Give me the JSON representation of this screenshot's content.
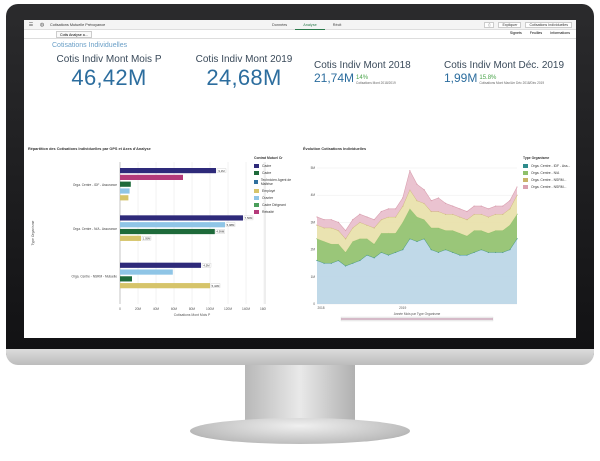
{
  "topbar": {
    "menu_icon": "menu-icon",
    "app_name": "Cotisations Mutuelle Prévoyance",
    "tabs": [
      {
        "label": "Données"
      },
      {
        "label": "Analyse"
      },
      {
        "label": "Récit"
      }
    ],
    "active_tab": "Analyse",
    "explain_label": "Expliquer",
    "sheet_name": "Cotisations Individuelles"
  },
  "secbar": {
    "sheet_tab": "Cotis Analyse a...",
    "bookmarks": "Signets",
    "sheets": "Feuilles",
    "details": "Informations"
  },
  "sheet_title": "Cotisations Individuelles",
  "kpis": [
    {
      "title": "Cotis Indiv Mont Mois P",
      "value": "46,42M"
    },
    {
      "title": "Cotis Indiv Mont 2019",
      "value": "24,68M"
    },
    {
      "title": "Cotis Indiv Mont 2018",
      "value": "21,74M",
      "pct": "14%",
      "cmp": "Cotisations Mont 2018/2019"
    },
    {
      "title": "Cotis Indiv Mont Déc. 2019",
      "value": "1,99M",
      "pct": "15.8%",
      "cmp": "Cotisations Mont Max/Arr Déc 2018/Déc 2019"
    }
  ],
  "bar_panel": {
    "title": "Répartition des Cotisations Individuelles par OPS et Axes d'Analyse",
    "legend_title": "Contrat Mutuel Cr",
    "legend": [
      {
        "label": "Cadre",
        "color": "#2e2a7a"
      },
      {
        "label": "Cadre",
        "color": "#1e6a3a"
      },
      {
        "label": "Technicien Agent de Maîtrise",
        "color": "#2f6f9e"
      },
      {
        "label": "Employé",
        "color": "#d6c46a"
      },
      {
        "label": "Ouvrier",
        "color": "#8fc5e6"
      },
      {
        "label": "Cadre Dirigeant",
        "color": "#4a9e5a"
      },
      {
        "label": "Retraité",
        "color": "#b43a7a"
      }
    ]
  },
  "chart_data": [
    {
      "type": "bar",
      "orientation": "horizontal",
      "xlabel": "Cotisations Mont Mois P",
      "ylabel": "Type Organisme",
      "categories": [
        "Orga. Centre - IDF - Assurance",
        "Orga. Centre - N/A - Assurance",
        "Orga. Centre - NSRM - Mutuelle"
      ],
      "xticks": [
        "0",
        "20M",
        "40M",
        "60M",
        "80M",
        "100M",
        "120M",
        "140M",
        "160M"
      ],
      "groups": [
        {
          "category": "Orga. Centre - IDF - Assurance",
          "bars": [
            {
              "value": 160,
              "label": "9,1M",
              "color": "#2e2a7a"
            },
            {
              "value": 105,
              "label": "",
              "color": "#b43a7a"
            },
            {
              "value": 18,
              "label": "",
              "color": "#1e6a3a"
            },
            {
              "value": 16,
              "label": "",
              "color": "#8fc5e6"
            },
            {
              "value": 14,
              "label": "",
              "color": "#d6c46a"
            }
          ]
        },
        {
          "category": "Orga. Centre - N/A - Assurance",
          "bars": [
            {
              "value": 205,
              "label": "7,56M",
              "color": "#2e2a7a"
            },
            {
              "value": 175,
              "label": "5,98M",
              "color": "#8fc5e6"
            },
            {
              "value": 158,
              "label": "4,99M",
              "color": "#1e6a3a"
            },
            {
              "value": 35,
              "label": "1,05M",
              "color": "#d6c46a"
            }
          ]
        },
        {
          "category": "Orga. Centre - NSRM - Mutuelle",
          "bars": [
            {
              "value": 135,
              "label": "4,5M",
              "color": "#2e2a7a"
            },
            {
              "value": 88,
              "label": "",
              "color": "#8fc5e6"
            },
            {
              "value": 20,
              "label": "",
              "color": "#1e6a3a"
            },
            {
              "value": 150,
              "label": "5,42M",
              "color": "#d6c46a"
            }
          ]
        }
      ]
    },
    {
      "type": "area",
      "title": "Évolution Cotisations Individuelles",
      "legend_title": "Type Organisme",
      "legend": [
        {
          "label": "Orga. Centre - IDF - Ass...",
          "color": "#2e8b8b"
        },
        {
          "label": "Orga. Centre - N/A",
          "color": "#8fc06a"
        },
        {
          "label": "Orga. Centre - NSRM...",
          "color": "#c9b36a"
        },
        {
          "label": "Orga. Centre - NSRM...",
          "color": "#d9a0b0"
        }
      ],
      "yticks": [
        "0",
        "1M",
        "2M",
        "3M",
        "4M",
        "5M"
      ],
      "xticks": [
        "2018",
        "2019"
      ],
      "scrollbar_label": "Année Mois par Type Organisme",
      "series": [
        {
          "values": [
            1.6,
            1.5,
            1.5,
            1.6,
            1.4,
            1.5,
            1.6,
            1.8,
            1.7,
            1.9,
            1.8,
            1.9,
            2.0,
            2.4,
            2.3,
            2.4,
            2.0,
            1.9,
            2.0,
            1.9,
            1.8,
            1.8,
            1.9,
            2.0,
            1.9,
            1.9,
            1.9,
            2.0,
            2.4
          ],
          "color": "#b9d5e6"
        },
        {
          "values": [
            0.8,
            0.8,
            0.7,
            0.6,
            0.5,
            0.8,
            0.8,
            0.6,
            0.5,
            0.7,
            0.8,
            0.7,
            1.0,
            1.1,
            0.9,
            0.7,
            0.8,
            0.9,
            0.7,
            0.8,
            0.8,
            0.7,
            0.8,
            0.7,
            0.7,
            0.8,
            0.8,
            0.9,
            0.9
          ],
          "color": "#8fc06a"
        },
        {
          "values": [
            0.5,
            0.5,
            0.6,
            0.5,
            0.5,
            0.5,
            0.6,
            0.5,
            0.6,
            0.5,
            0.6,
            0.6,
            0.6,
            0.7,
            0.6,
            0.6,
            0.6,
            0.6,
            0.6,
            0.6,
            0.6,
            0.6,
            0.6,
            0.6,
            0.6,
            0.6,
            0.6,
            0.6,
            0.7
          ],
          "color": "#e8e0a8"
        },
        {
          "values": [
            0.3,
            0.3,
            0.3,
            0.3,
            0.3,
            0.3,
            0.3,
            0.3,
            0.3,
            0.3,
            0.3,
            0.3,
            0.3,
            0.7,
            0.6,
            0.5,
            0.4,
            0.5,
            0.4,
            0.3,
            0.3,
            0.3,
            0.3,
            0.3,
            0.3,
            0.3,
            0.3,
            0.3,
            0.3
          ],
          "color": "#e8bccb"
        }
      ]
    }
  ],
  "area_panel": {
    "title": "Évolution Cotisations Individuelles",
    "legend_title": "Type Organisme"
  }
}
